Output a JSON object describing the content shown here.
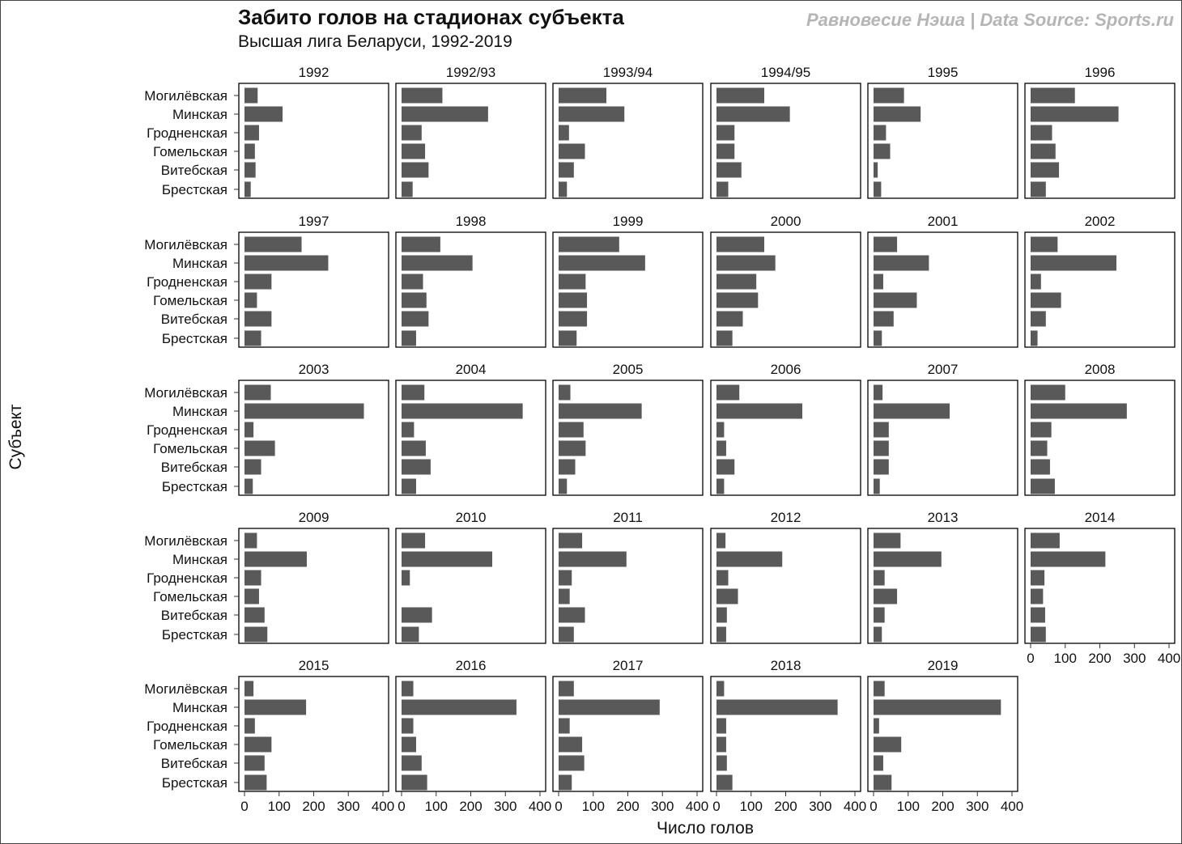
{
  "title": "Забито голов на стадионах субъекта",
  "subtitle": "Высшая лига Беларуси, 1992-2019",
  "caption": "Равновесие Нэша | Data Source: Sports.ru",
  "colors": {
    "bar": "#595959",
    "panel_border": "#000000",
    "background": "#ffffff"
  },
  "chart_data": {
    "type": "bar",
    "orientation": "horizontal",
    "facet_by": "season",
    "xlabel": "Число голов",
    "ylabel": "Субъект",
    "xlim": [
      0,
      400
    ],
    "xticks": [
      0,
      100,
      200,
      300,
      400
    ],
    "categories": [
      "Могилёвская",
      "Минская",
      "Гродненская",
      "Гомельская",
      "Витебская",
      "Брестская"
    ],
    "panels": [
      {
        "season": "1992",
        "values": [
          38,
          110,
          42,
          30,
          32,
          18
        ]
      },
      {
        "season": "1992/93",
        "values": [
          118,
          250,
          58,
          68,
          78,
          32
        ]
      },
      {
        "season": "1993/94",
        "values": [
          138,
          190,
          30,
          76,
          44,
          24
        ]
      },
      {
        "season": "1994/95",
        "values": [
          138,
          212,
          52,
          52,
          72,
          34
        ]
      },
      {
        "season": "1995",
        "values": [
          88,
          136,
          36,
          48,
          12,
          22
        ]
      },
      {
        "season": "1996",
        "values": [
          128,
          254,
          62,
          72,
          82,
          44
        ]
      },
      {
        "season": "1997",
        "values": [
          165,
          242,
          78,
          36,
          78,
          48
        ]
      },
      {
        "season": "1998",
        "values": [
          112,
          205,
          62,
          72,
          78,
          42
        ]
      },
      {
        "season": "1999",
        "values": [
          175,
          250,
          78,
          82,
          82,
          52
        ]
      },
      {
        "season": "2000",
        "values": [
          138,
          170,
          115,
          120,
          76,
          46
        ]
      },
      {
        "season": "2001",
        "values": [
          68,
          160,
          28,
          125,
          58,
          24
        ]
      },
      {
        "season": "2002",
        "values": [
          78,
          248,
          30,
          88,
          44,
          20
        ]
      },
      {
        "season": "2003",
        "values": [
          76,
          345,
          26,
          88,
          48,
          24
        ]
      },
      {
        "season": "2004",
        "values": [
          66,
          350,
          36,
          70,
          84,
          42
        ]
      },
      {
        "season": "2005",
        "values": [
          34,
          240,
          72,
          78,
          48,
          24
        ]
      },
      {
        "season": "2006",
        "values": [
          66,
          248,
          22,
          28,
          52,
          22
        ]
      },
      {
        "season": "2007",
        "values": [
          26,
          220,
          44,
          44,
          44,
          18
        ]
      },
      {
        "season": "2008",
        "values": [
          100,
          278,
          60,
          48,
          56,
          70
        ]
      },
      {
        "season": "2009",
        "values": [
          36,
          180,
          48,
          42,
          58,
          66
        ]
      },
      {
        "season": "2010",
        "values": [
          68,
          262,
          24,
          0,
          88,
          50
        ]
      },
      {
        "season": "2011",
        "values": [
          68,
          196,
          38,
          32,
          76,
          44
        ]
      },
      {
        "season": "2012",
        "values": [
          26,
          190,
          34,
          62,
          30,
          28
        ]
      },
      {
        "season": "2013",
        "values": [
          78,
          196,
          32,
          68,
          32,
          24
        ]
      },
      {
        "season": "2014",
        "values": [
          84,
          216,
          40,
          36,
          42,
          44
        ]
      },
      {
        "season": "2015",
        "values": [
          26,
          178,
          30,
          78,
          58,
          64
        ]
      },
      {
        "season": "2016",
        "values": [
          34,
          332,
          34,
          42,
          58,
          74
        ]
      },
      {
        "season": "2017",
        "values": [
          44,
          292,
          32,
          68,
          74,
          38
        ]
      },
      {
        "season": "2018",
        "values": [
          22,
          350,
          28,
          28,
          30,
          46
        ]
      },
      {
        "season": "2019",
        "values": [
          32,
          368,
          16,
          80,
          28,
          52
        ]
      }
    ]
  }
}
